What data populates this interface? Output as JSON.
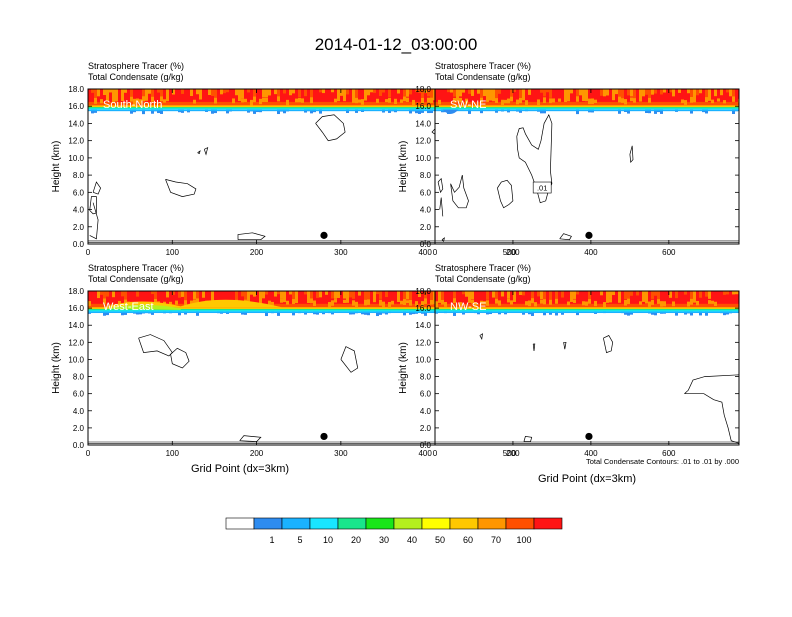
{
  "title": "2014-01-12_03:00:00",
  "field_label_1": "Stratosphere Tracer   (%)",
  "field_label_2": "Total Condensate   (g/kg)",
  "ylabel": "Height (km)",
  "xlabel": "Grid Point (dx=3km)",
  "contour_note": "Total Condensate Contours: .01 to .01 by .000",
  "colorbar": {
    "colors": [
      "#ffffff",
      "#2e8cf0",
      "#1ab2ff",
      "#19e6ff",
      "#19e68c",
      "#19e619",
      "#b4f01e",
      "#ffff00",
      "#ffc800",
      "#ff9600",
      "#ff5000",
      "#ff1414"
    ],
    "labels": [
      "1",
      "5",
      "10",
      "20",
      "30",
      "40",
      "50",
      "60",
      "70",
      "100"
    ]
  },
  "chart_data": [
    {
      "type": "contour",
      "panel_label": "South-North",
      "xlim": [
        0,
        560
      ],
      "xticks": [
        0,
        100,
        200,
        300,
        400,
        500
      ],
      "ylim": [
        0,
        18
      ],
      "yticks": [
        "0.0",
        "2.0",
        "4.0",
        "6.0",
        "8.0",
        "10.0",
        "12.0",
        "14.0",
        "16.0",
        "18.0"
      ],
      "marker": {
        "x": 280,
        "y": 1.0
      },
      "contour_label": ""
    },
    {
      "type": "contour",
      "panel_label": "SW-NE",
      "xlim": [
        0,
        780
      ],
      "xticks": [
        0,
        200,
        400,
        600
      ],
      "ylim": [
        0,
        18
      ],
      "yticks": [
        "0.0",
        "2.0",
        "4.0",
        "6.0",
        "8.0",
        "10.0",
        "12.0",
        "14.0",
        "16.0",
        "18.0"
      ],
      "marker": {
        "x": 395,
        "y": 1.0
      },
      "contour_label": ".01"
    },
    {
      "type": "contour",
      "panel_label": "West-East",
      "xlim": [
        0,
        560
      ],
      "xticks": [
        0,
        100,
        200,
        300,
        400,
        500
      ],
      "ylim": [
        0,
        18
      ],
      "yticks": [
        "0.0",
        "2.0",
        "4.0",
        "6.0",
        "8.0",
        "10.0",
        "12.0",
        "14.0",
        "16.0",
        "18.0"
      ],
      "marker": {
        "x": 280,
        "y": 1.0
      },
      "contour_label": ""
    },
    {
      "type": "contour",
      "panel_label": "NW-SE",
      "xlim": [
        0,
        780
      ],
      "xticks": [
        0,
        200,
        400,
        600
      ],
      "ylim": [
        0,
        18
      ],
      "yticks": [
        "0.0",
        "2.0",
        "4.0",
        "6.0",
        "8.0",
        "10.0",
        "12.0",
        "14.0",
        "16.0",
        "18.0"
      ],
      "marker": {
        "x": 395,
        "y": 1.0
      },
      "contour_label": ""
    }
  ]
}
